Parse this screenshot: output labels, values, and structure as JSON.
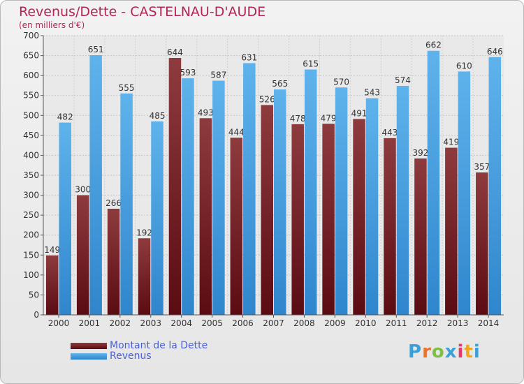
{
  "title": "Revenus/Dette - CASTELNAU-D'AUDE",
  "subtitle": "(en milliers d'€)",
  "logo": {
    "text": "Proxiti",
    "letter_colors": [
      "#3aa0d8",
      "#e8732a",
      "#7cc142",
      "#3aa0d8",
      "#e23b6a",
      "#f2a81d",
      "#3aa0d8"
    ]
  },
  "chart_data": {
    "type": "bar",
    "categories": [
      "2000",
      "2001",
      "2002",
      "2003",
      "2004",
      "2005",
      "2006",
      "2007",
      "2008",
      "2009",
      "2010",
      "2011",
      "2012",
      "2013",
      "2014"
    ],
    "series": [
      {
        "name": "Montant de la Dette",
        "color": "#6b1a1f",
        "values": [
          149,
          300,
          266,
          192,
          644,
          493,
          444,
          526,
          478,
          479,
          491,
          443,
          392,
          419,
          357
        ],
        "labels": [
          "149",
          "300",
          "266",
          "192",
          "644",
          "493",
          "444",
          "526",
          "478",
          "479",
          "491",
          "443",
          "392",
          "419",
          "357"
        ]
      },
      {
        "name": "Revenus",
        "color": "#3f9be0",
        "values": [
          482,
          651,
          555,
          485,
          593,
          587,
          631,
          565,
          615,
          570,
          543,
          574,
          662,
          610,
          646
        ],
        "labels": [
          "482",
          "651",
          "555",
          "485",
          "593",
          "587",
          "631",
          "565",
          "615",
          "570",
          "543",
          "574",
          "662",
          "610",
          "646"
        ]
      }
    ],
    "ylim": [
      0,
      700
    ],
    "yticks": [
      0,
      50,
      100,
      150,
      200,
      250,
      300,
      350,
      400,
      450,
      500,
      550,
      600,
      650,
      700
    ],
    "grid": true,
    "legend_position": "bottom-left"
  }
}
